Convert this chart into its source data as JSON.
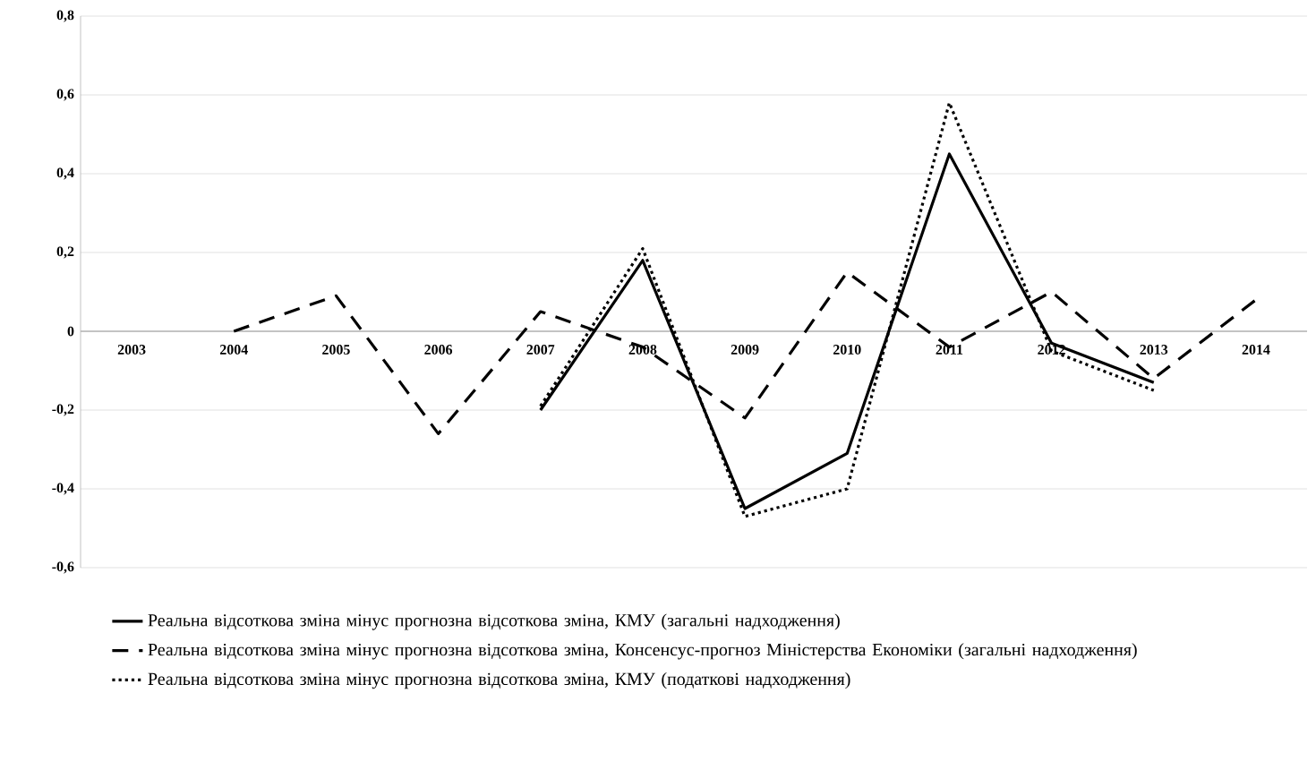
{
  "chart_data": {
    "type": "line",
    "categories": [
      "2003",
      "2004",
      "2005",
      "2006",
      "2007",
      "2008",
      "2009",
      "2010",
      "2011",
      "2012",
      "2013",
      "2014"
    ],
    "series": [
      {
        "name": "Реальна відсоткова зміна мінус прогнозна відсоткова зміна, КМУ (загальні надходження)",
        "color": "#000000",
        "line_style": "solid",
        "values": [
          null,
          null,
          null,
          null,
          -0.2,
          0.18,
          -0.45,
          -0.31,
          0.45,
          -0.03,
          -0.13,
          null
        ]
      },
      {
        "name": "Реальна відсоткова зміна мінус прогнозна відсоткова зміна, Консенсус-прогноз Міністерства Економіки (загальні надходження)",
        "color": "#000000",
        "line_style": "dashed",
        "values": [
          null,
          0,
          0.09,
          -0.26,
          0.05,
          -0.04,
          -0.22,
          0.15,
          -0.04,
          0.1,
          -0.12,
          0.08
        ]
      },
      {
        "name": "Реальна відсоткова зміна мінус прогнозна відсоткова зміна, КМУ (податкові надходження)",
        "color": "#000000",
        "line_style": "dotted",
        "values": [
          null,
          null,
          null,
          null,
          -0.19,
          0.21,
          -0.47,
          -0.4,
          0.58,
          -0.05,
          -0.15,
          null
        ]
      }
    ],
    "ylim": [
      -0.6,
      0.8
    ],
    "yticks": [
      {
        "value": -0.6,
        "label": "-0,6"
      },
      {
        "value": -0.4,
        "label": "-0,4"
      },
      {
        "value": -0.2,
        "label": "-0,2"
      },
      0,
      {
        "value": 0.2,
        "label": "0,2"
      },
      {
        "value": 0.4,
        "label": "0,4"
      },
      {
        "value": 0.6,
        "label": "0,6"
      },
      {
        "value": 0.8,
        "label": "0,8"
      }
    ],
    "grid": "y",
    "legend": "bottom"
  }
}
